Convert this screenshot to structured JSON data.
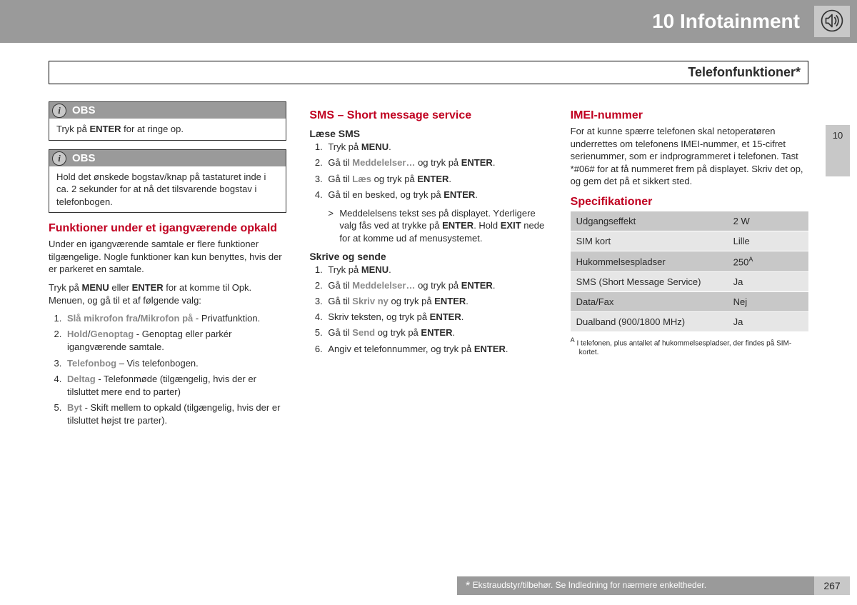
{
  "header": {
    "chapter": "10 Infotainment",
    "section_title": "Telefonfunktioner*",
    "side_tab": "10"
  },
  "col1": {
    "obs1_label": "OBS",
    "obs1_body_pre": "Tryk på ",
    "obs1_body_bold": "ENTER",
    "obs1_body_post": " for at ringe op.",
    "obs2_label": "OBS",
    "obs2_body": "Hold det ønskede bogstav/knap på tastaturet inde i ca. 2 sekunder for at nå det tilsvarende bogstav i telefonbogen.",
    "h3": "Funktioner under et igangværende opkald",
    "p1": "Under en igangværende samtale er flere funktioner tilgængelige. Nogle funktioner kan kun benyttes, hvis der er parkeret en samtale.",
    "p2_a": "Tryk på ",
    "p2_b": "MENU",
    "p2_c": " eller ",
    "p2_d": "ENTER",
    "p2_e": " for at komme til Opk. Menuen, og gå til et af følgende valg:",
    "items": [
      {
        "g1": "Slå mikrofon fra",
        "sep": "/",
        "g2": "Mikrofon på",
        "rest": " - Privatfunktion."
      },
      {
        "g1": "Hold",
        "sep": "/",
        "g2": "Genoptag",
        "rest": " - Genoptag eller parkér igangværende samtale."
      },
      {
        "g1": "Telefonbog",
        "sep": "",
        "g2": "",
        "rest": " – Vis telefonbogen."
      },
      {
        "g1": "Deltag",
        "sep": "",
        "g2": "",
        "rest": " - Telefonmøde (tilgængelig, hvis der er tilsluttet mere end to parter)"
      },
      {
        "g1": "Byt",
        "sep": "",
        "g2": "",
        "rest": " - Skift mellem to opkald (tilgængelig, hvis der er tilsluttet højst tre parter)."
      }
    ]
  },
  "col2": {
    "h3": "SMS – Short message service",
    "read_h4": "Læse SMS",
    "read_steps": [
      {
        "pre": "Tryk på ",
        "g": "",
        "mid": "",
        "b": "MENU",
        "post": "."
      },
      {
        "pre": "Gå til ",
        "g": "Meddelelser…",
        "mid": " og tryk på ",
        "b": "ENTER",
        "post": "."
      },
      {
        "pre": "Gå til ",
        "g": "Læs",
        "mid": " og tryk på ",
        "b": "ENTER",
        "post": "."
      },
      {
        "pre": "Gå til en besked, og tryk på ",
        "g": "",
        "mid": "",
        "b": "ENTER",
        "post": "."
      }
    ],
    "sub_a": "Meddelelsens tekst ses på displayet. Yderligere valg fås ved at trykke på ",
    "sub_b1": "ENTER",
    "sub_c": ". Hold ",
    "sub_b2": "EXIT",
    "sub_d": " nede for at komme ud af menusystemet.",
    "write_h4": "Skrive og sende",
    "write_steps": [
      {
        "pre": "Tryk på ",
        "g": "",
        "mid": "",
        "b": "MENU",
        "post": "."
      },
      {
        "pre": "Gå til ",
        "g": "Meddelelser…",
        "mid": " og tryk på ",
        "b": "ENTER",
        "post": "."
      },
      {
        "pre": "Gå til ",
        "g": "Skriv ny",
        "mid": " og tryk på ",
        "b": "ENTER",
        "post": "."
      },
      {
        "pre": "Skriv teksten, og tryk på ",
        "g": "",
        "mid": "",
        "b": "ENTER",
        "post": "."
      },
      {
        "pre": "Gå til ",
        "g": "Send",
        "mid": " og tryk på ",
        "b": "ENTER",
        "post": "."
      },
      {
        "pre": "Angiv et telefonnummer, og tryk på ",
        "g": "",
        "mid": "",
        "b": "ENTER",
        "post": "."
      }
    ]
  },
  "col3": {
    "h3a": "IMEI-nummer",
    "imei_text": "For at kunne spærre telefonen skal netoperatøren underrettes om telefonens IMEI-nummer, et 15-cifret serienummer, som er indprogrammeret i telefonen. Tast *#06# for at få nummeret frem på displayet. Skriv det op, og gem det på et sikkert sted.",
    "h3b": "Specifikationer",
    "spec_rows": [
      {
        "k": "Udgangseffekt",
        "v": "2 W"
      },
      {
        "k": "SIM kort",
        "v": "Lille"
      },
      {
        "k": "Hukommelsespladser",
        "v": "250",
        "sup": "A"
      },
      {
        "k": "SMS (Short Message Service)",
        "v": "Ja"
      },
      {
        "k": "Data/Fax",
        "v": "Nej"
      },
      {
        "k": "Dualband (900/1800 MHz)",
        "v": "Ja"
      }
    ],
    "footnote_sup": "A",
    "footnote": "I telefonen, plus antallet af hukommelsespladser, der findes på SIM-kortet."
  },
  "footer": {
    "text": " Ekstraudstyr/tilbehør. Se Indledning for nærmere enkeltheder.",
    "page": "267"
  }
}
